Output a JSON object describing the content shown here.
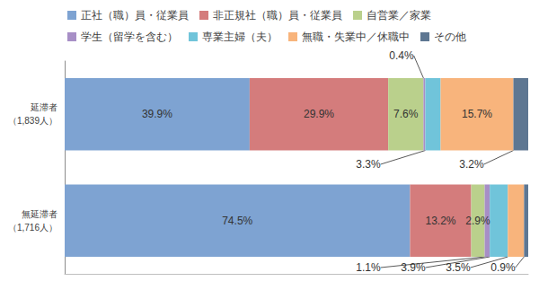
{
  "chart_data": {
    "type": "bar",
    "orientation": "horizontal",
    "stacked": true,
    "data_labels": true,
    "tick_labels": "y",
    "legend": "top",
    "grid": false,
    "categories": [
      "延滞者\n（1,839人）",
      "無延滞者\n（1,716人）"
    ],
    "xlim": [
      0,
      100
    ],
    "series": [
      {
        "name": "正社（職）員・従業員",
        "color": "#7ea3d2",
        "values": [
          39.9,
          74.5
        ],
        "value_labels": [
          "39.9%",
          "74.5%"
        ]
      },
      {
        "name": "非正規社（職）員・従業員",
        "color": "#d47c7c",
        "values": [
          29.9,
          13.2
        ],
        "value_labels": [
          "29.9%",
          "13.2%"
        ]
      },
      {
        "name": "自営業／家業",
        "color": "#bad08c",
        "values": [
          7.6,
          2.9
        ],
        "value_labels": [
          "7.6%",
          "2.9%"
        ]
      },
      {
        "name": "学生（留学を含む）",
        "color": "#a78fc6",
        "values": [
          0.4,
          1.1
        ],
        "value_labels": [
          "0.4%",
          "1.1%"
        ]
      },
      {
        "name": "専業主婦（夫）",
        "color": "#70c4da",
        "values": [
          3.3,
          3.9
        ],
        "value_labels": [
          "3.3%",
          "3.9%"
        ]
      },
      {
        "name": "無職・失業中／休職中",
        "color": "#f8b47c",
        "values": [
          15.7,
          3.5
        ],
        "value_labels": [
          "15.7%",
          "3.5%"
        ]
      },
      {
        "name": "その他",
        "color": "#5e7792",
        "values": [
          3.2,
          0.9
        ],
        "value_labels": [
          "3.2%",
          "0.9%"
        ]
      }
    ]
  }
}
